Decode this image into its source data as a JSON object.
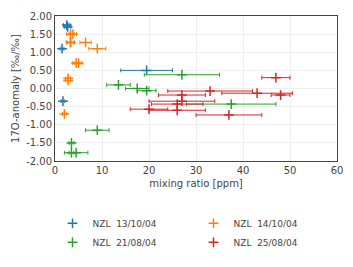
{
  "chart_data": {
    "type": "scatter",
    "xlabel": "mixing ratio [ppm]",
    "ylabel": "17O-anomaly [‰/‰]",
    "xlim": [
      0,
      60
    ],
    "ylim": [
      -2.0,
      2.0
    ],
    "xticks": [
      0,
      10,
      20,
      30,
      40,
      50,
      60
    ],
    "yticks": [
      {
        "value": -2.0,
        "label": "-2.00"
      },
      {
        "value": -1.5,
        "label": "-1.50"
      },
      {
        "value": -1.0,
        "label": "-1.00"
      },
      {
        "value": -0.5,
        "label": "-0.50"
      },
      {
        "value": 0.0,
        "label": "0.00"
      },
      {
        "value": 0.5,
        "label": "0.50"
      },
      {
        "value": 1.0,
        "label": "1.00"
      },
      {
        "value": 1.5,
        "label": "1.50"
      },
      {
        "value": 2.0,
        "label": "2.00"
      }
    ],
    "grid": true,
    "legend": "bottom",
    "marker": "cross",
    "series": [
      {
        "name": "NZL  13/10/04",
        "x": [
          2.5,
          2.7,
          1.5,
          3.3,
          1.7,
          19.5
        ],
        "xerr": [
          0.7,
          0.7,
          0.4,
          0.8,
          0.4,
          5.5
        ],
        "values": [
          1.75,
          1.7,
          1.1,
          1.27,
          -0.35,
          0.5
        ]
      },
      {
        "name": "NZL  14/10/04",
        "x": [
          3.3,
          3.8,
          3.3,
          6.5,
          9.0,
          5.0,
          4.5,
          2.8,
          2.8,
          2.0
        ],
        "xerr": [
          0.8,
          0.8,
          0.8,
          1.2,
          1.8,
          0.8,
          0.8,
          0.5,
          0.5,
          0.4
        ],
        "values": [
          1.5,
          1.5,
          1.27,
          1.27,
          1.1,
          0.7,
          0.7,
          0.28,
          0.22,
          -0.7
        ]
      },
      {
        "name": "NZL  21/08/04",
        "x": [
          9.0,
          3.5,
          4.5,
          3.5,
          13.5,
          17.5,
          19.5,
          27.0,
          37.5
        ],
        "xerr": [
          2.5,
          0.5,
          2.5,
          0.5,
          2.5,
          2.5,
          2.0,
          8.0,
          9.5
        ],
        "values": [
          -1.15,
          -1.5,
          -1.77,
          -1.77,
          0.1,
          0.0,
          -0.06,
          0.38,
          -0.43
        ]
      },
      {
        "name": "NZL  25/08/04",
        "x": [
          47.0,
          33.0,
          27.0,
          27.0,
          26.0,
          20.0,
          26.0,
          37.0,
          43.0,
          48.0
        ],
        "xerr": [
          3.0,
          9.0,
          5.0,
          7.0,
          5.5,
          4.0,
          6.0,
          7.0,
          7.5,
          2.0
        ],
        "values": [
          0.3,
          -0.07,
          -0.18,
          -0.35,
          -0.43,
          -0.57,
          -0.6,
          -0.73,
          -0.13,
          -0.18
        ]
      }
    ]
  }
}
